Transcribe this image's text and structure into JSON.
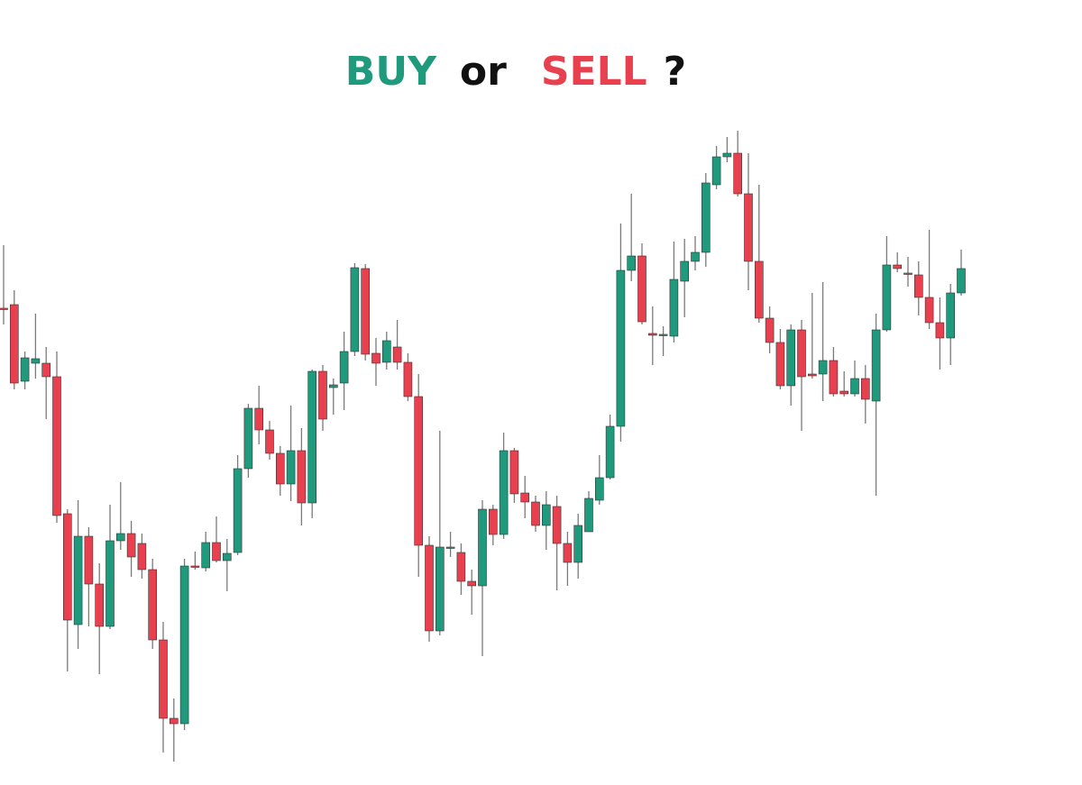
{
  "chart_data": {
    "type": "candlestick",
    "title_parts": [
      {
        "text": "BUY",
        "color": "#1f9a7d"
      },
      {
        "text": "or",
        "color": "#111111"
      },
      {
        "text": "SELL",
        "color": "#e8404f"
      },
      {
        "text": "?",
        "color": "#111111"
      }
    ],
    "up_color": "#1f9a7d",
    "down_color": "#e8404f",
    "wick_color": "#7a7a7a",
    "ylim": [
      0,
      871
    ],
    "open": [
      529,
      533,
      448,
      468,
      468,
      453,
      301,
      178,
      276,
      223,
      176,
      271,
      279,
      268,
      239,
      161,
      74,
      68,
      243,
      241,
      269,
      249,
      258,
      351,
      418,
      394,
      368,
      334,
      371,
      313,
      459,
      441,
      446,
      481,
      573,
      479,
      469,
      486,
      469,
      431,
      266,
      171,
      263,
      258,
      226,
      221,
      306,
      278,
      371,
      324,
      314,
      288,
      309,
      268,
      247,
      281,
      316,
      341,
      398,
      571,
      587,
      501,
      499,
      498,
      559,
      581,
      591,
      666,
      697,
      701,
      656,
      581,
      518,
      491,
      443,
      505,
      456,
      456,
      471,
      437,
      434,
      451,
      426,
      505,
      577,
      568,
      566,
      541,
      513,
      496,
      546
    ],
    "high": [
      599,
      549,
      481,
      523,
      486,
      481,
      306,
      316,
      286,
      246,
      311,
      336,
      293,
      279,
      251,
      181,
      96,
      251,
      259,
      281,
      298,
      273,
      366,
      423,
      443,
      404,
      376,
      421,
      396,
      461,
      466,
      451,
      503,
      579,
      578,
      496,
      503,
      516,
      479,
      456,
      276,
      393,
      281,
      268,
      239,
      316,
      311,
      391,
      374,
      343,
      321,
      326,
      321,
      281,
      301,
      326,
      366,
      411,
      623,
      656,
      601,
      531,
      509,
      603,
      606,
      609,
      679,
      709,
      719,
      726,
      701,
      666,
      531,
      506,
      511,
      516,
      546,
      558,
      486,
      459,
      471,
      466,
      523,
      609,
      591,
      586,
      581,
      616,
      541,
      556,
      594
    ],
    "low": [
      511,
      439,
      439,
      451,
      406,
      291,
      126,
      151,
      176,
      123,
      173,
      261,
      231,
      229,
      151,
      36,
      26,
      61,
      239,
      237,
      247,
      215,
      255,
      341,
      378,
      361,
      321,
      315,
      288,
      296,
      393,
      411,
      416,
      476,
      471,
      443,
      461,
      461,
      426,
      231,
      159,
      166,
      253,
      211,
      189,
      143,
      266,
      273,
      313,
      296,
      281,
      261,
      216,
      221,
      229,
      281,
      311,
      339,
      381,
      559,
      511,
      466,
      476,
      491,
      519,
      571,
      575,
      661,
      691,
      653,
      549,
      513,
      479,
      439,
      421,
      393,
      451,
      426,
      431,
      431,
      431,
      401,
      321,
      503,
      569,
      553,
      521,
      506,
      461,
      466,
      543
    ],
    "close": [
      528,
      446,
      474,
      473,
      453,
      299,
      183,
      276,
      223,
      176,
      271,
      279,
      253,
      239,
      161,
      74,
      68,
      243,
      242,
      269,
      249,
      257,
      351,
      418,
      394,
      368,
      334,
      371,
      313,
      459,
      406,
      444,
      481,
      574,
      478,
      468,
      493,
      469,
      431,
      266,
      171,
      264,
      264,
      226,
      221,
      306,
      278,
      371,
      323,
      314,
      288,
      311,
      268,
      247,
      288,
      318,
      341,
      398,
      571,
      587,
      514,
      499,
      500,
      561,
      581,
      591,
      668,
      697,
      701,
      656,
      581,
      518,
      491,
      443,
      505,
      453,
      454,
      471,
      434,
      434,
      451,
      428,
      505,
      577,
      573,
      567,
      541,
      513,
      496,
      546,
      573
    ]
  }
}
